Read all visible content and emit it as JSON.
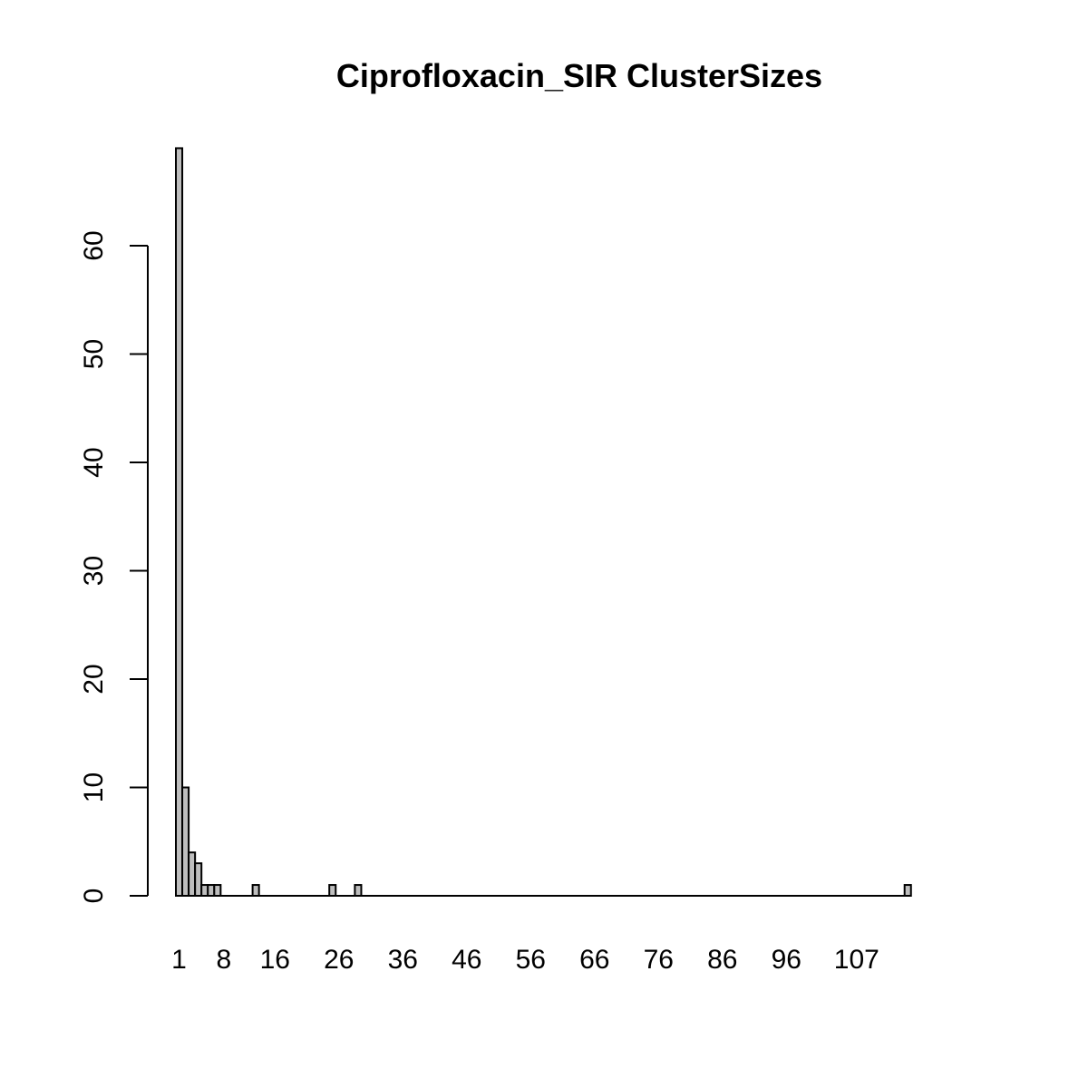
{
  "chart_data": {
    "type": "bar",
    "title": "Ciprofloxacin_SIR ClusterSizes",
    "xlabel": "",
    "ylabel": "",
    "categories": [
      1,
      2,
      3,
      4,
      5,
      6,
      7,
      13,
      25,
      29,
      115
    ],
    "values": [
      69,
      10,
      4,
      3,
      1,
      1,
      1,
      1,
      1,
      1,
      1
    ],
    "x_axis_range": [
      1,
      115
    ],
    "x_tick_labels": [
      "1",
      "8",
      "16",
      "26",
      "36",
      "46",
      "56",
      "66",
      "76",
      "86",
      "96",
      "107"
    ],
    "y_ticks": [
      0,
      10,
      20,
      30,
      40,
      50,
      60
    ],
    "ylim": [
      0,
      69
    ],
    "bar_color": "#bebebe",
    "grid": false,
    "legend": "none"
  }
}
